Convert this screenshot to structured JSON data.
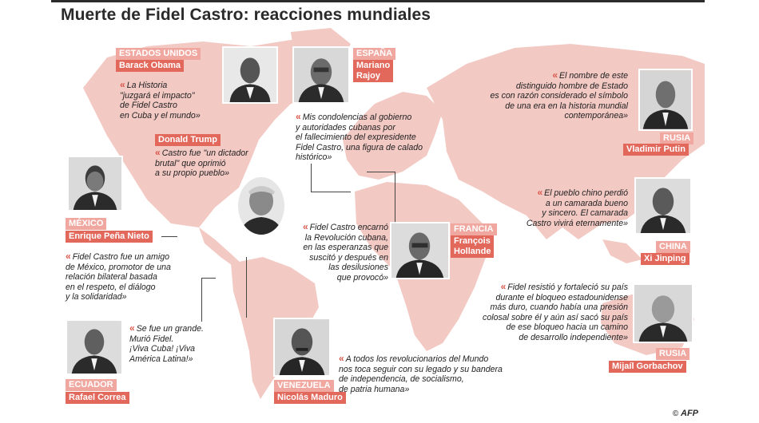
{
  "title": "Muerte de Fidel Castro: reacciones mundiales",
  "credit": {
    "symbol": "©",
    "logo": "AFP"
  },
  "colors": {
    "accent": "#e2685c",
    "map": "#f3c9c4",
    "text": "#222222"
  },
  "items": {
    "usa": {
      "country": "ESTADOS UNIDOS",
      "name": "Barack Obama",
      "quote": "La Historia\n\"juzgará el impacto\"\nde Fidel Castro\nen Cuba y el mundo»"
    },
    "trump": {
      "name": "Donald Trump",
      "quote": "Castro fue \"un dictador\nbrutal\" que oprimió\na su propio pueblo»"
    },
    "spain": {
      "country": "ESPAÑA",
      "name": "Mariano\nRajoy",
      "quote": "Mis condolencias al gobierno\ny autoridades cubanas por\nel fallecimiento del expresidente\nFidel Castro, una figura de calado\nhistórico»"
    },
    "russia_putin": {
      "country": "RUSIA",
      "name": "Vladimir Putin",
      "quote": "El nombre de este\ndistinguido hombre de Estado\nes con razón considerado el símbolo\nde una era en la historia mundial\ncontemporánea»"
    },
    "china": {
      "country": "CHINA",
      "name": "Xi Jinping",
      "quote": "El pueblo chino perdió\na un camarada bueno\ny sincero. El camarada\nCastro vivirá eternamente»"
    },
    "mexico": {
      "country": "MÉXICO",
      "name": "Enrique Peña Nieto",
      "quote": "Fidel Castro fue un amigo\nde México, promotor de una\nrelación bilateral basada\nen el respeto, el diálogo\ny la solidaridad»"
    },
    "france": {
      "country": "FRANCIA",
      "name": "François\nHollande",
      "quote": "Fidel Castro encarnó\nla Revolución cubana,\nen las esperanzas que\nsuscitó y después en\nlas desilusiones\nque provocó»"
    },
    "russia_gorbachov": {
      "country": "RUSIA",
      "name": "Mijaíl Gorbachov",
      "quote": "Fidel resistió y fortaleció su país\ndurante el bloqueo estadounidense\nmás duro, cuando había una presión\ncolosal sobre él y aún así sacó su país\nde ese bloqueo hacia un camino\nde desarrollo independiente»"
    },
    "ecuador": {
      "country": "ECUADOR",
      "name": "Rafael Correa",
      "quote": "Se fue un grande.\nMurió Fidel.\n¡Viva Cuba! ¡Viva\nAmérica Latina!»"
    },
    "venezuela": {
      "country": "VENEZUELA",
      "name": "Nicolás Maduro",
      "quote": "A todos los revolucionarios del Mundo\nnos toca seguir con su legado y su bandera\nde independencia, de socialismo,\nde patria humana»"
    }
  }
}
